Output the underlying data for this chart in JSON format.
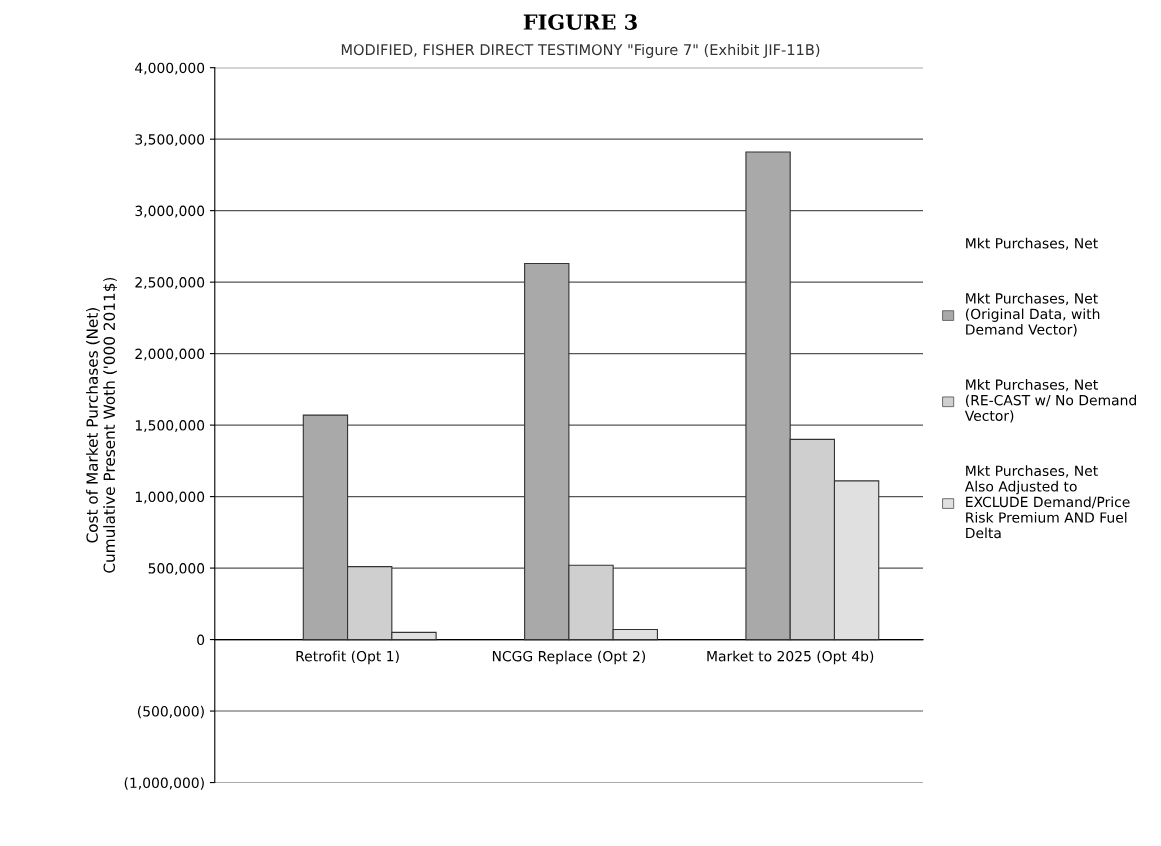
{
  "chart_data": {
    "type": "bar",
    "title": "FIGURE 3",
    "subtitle": "MODIFIED, FISHER DIRECT TESTIMONY \"Figure 7\" (Exhibit JIF-11B)",
    "ylabel": "Cost of Market Purchases (Net)\nCumulative Present Woth ('000 2011$)",
    "categories": [
      "Retrofit (Opt 1)",
      "NCGG Replace (Opt 2)",
      "Market to 2025 (Opt 4b)"
    ],
    "series": [
      {
        "name": "Mkt Purchases, Net",
        "values": [
          null,
          null,
          null
        ]
      },
      {
        "name": "Mkt Purchases, Net (Original Data, with Demand Vector)",
        "color": "#a9a9a9",
        "values": [
          1570000,
          2630000,
          3410000
        ]
      },
      {
        "name": "Mkt Purchases, Net (RE-CAST w/ No Demand Vector)",
        "color": "#cfcfcf",
        "values": [
          510000,
          520000,
          1400000
        ]
      },
      {
        "name": "Mkt Purchases, Net Also Adjusted to EXCLUDE Demand/Price Risk Premium AND Fuel Delta",
        "color": "#e0e0e0",
        "values": [
          50000,
          70000,
          1110000
        ]
      }
    ],
    "ylim": [
      -1000000,
      4000000
    ],
    "yticks": [
      {
        "value": -1000000,
        "label": "(1,000,000)"
      },
      {
        "value": -500000,
        "label": "(500,000)"
      },
      {
        "value": 0,
        "label": "0"
      },
      {
        "value": 500000,
        "label": "500,000"
      },
      {
        "value": 1000000,
        "label": "1,000,000"
      },
      {
        "value": 1500000,
        "label": "1,500,000"
      },
      {
        "value": 2000000,
        "label": "2,000,000"
      },
      {
        "value": 2500000,
        "label": "2,500,000"
      },
      {
        "value": 3000000,
        "label": "3,000,000"
      },
      {
        "value": 3500000,
        "label": "3,500,000"
      },
      {
        "value": 4000000,
        "label": "4,000,000"
      }
    ],
    "grid": "y",
    "legend": "right"
  }
}
